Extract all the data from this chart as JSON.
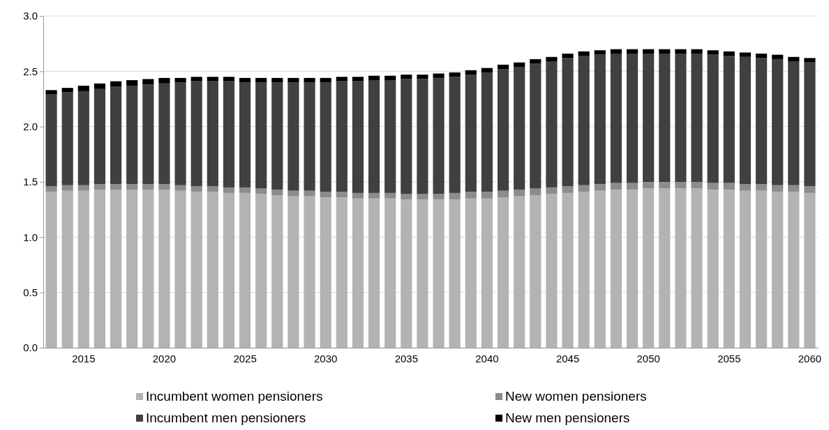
{
  "chart_data": {
    "type": "bar",
    "stacked": true,
    "categories": [
      null,
      null,
      "2015",
      null,
      null,
      null,
      null,
      "2020",
      null,
      null,
      null,
      null,
      "2025",
      null,
      null,
      null,
      null,
      "2030",
      null,
      null,
      null,
      null,
      "2035",
      null,
      null,
      null,
      null,
      "2040",
      null,
      null,
      null,
      null,
      "2045",
      null,
      null,
      null,
      null,
      "2050",
      null,
      null,
      null,
      null,
      "2055",
      null,
      null,
      null,
      null,
      "2060"
    ],
    "series": [
      {
        "name": "Incumbent women pensioners",
        "color": "#b3b3b3",
        "values": [
          1.41,
          1.42,
          1.42,
          1.43,
          1.43,
          1.43,
          1.43,
          1.43,
          1.42,
          1.41,
          1.41,
          1.4,
          1.4,
          1.39,
          1.38,
          1.37,
          1.37,
          1.36,
          1.36,
          1.35,
          1.35,
          1.35,
          1.34,
          1.34,
          1.34,
          1.34,
          1.35,
          1.35,
          1.36,
          1.37,
          1.38,
          1.39,
          1.4,
          1.41,
          1.42,
          1.43,
          1.43,
          1.44,
          1.44,
          1.44,
          1.44,
          1.43,
          1.43,
          1.42,
          1.42,
          1.41,
          1.41,
          1.4
        ]
      },
      {
        "name": "New women pensioners",
        "color": "#8c8c8c",
        "values": [
          0.05,
          0.05,
          0.05,
          0.05,
          0.05,
          0.05,
          0.05,
          0.05,
          0.05,
          0.05,
          0.05,
          0.05,
          0.05,
          0.05,
          0.05,
          0.05,
          0.05,
          0.05,
          0.05,
          0.05,
          0.05,
          0.05,
          0.05,
          0.05,
          0.05,
          0.06,
          0.06,
          0.06,
          0.06,
          0.06,
          0.06,
          0.06,
          0.06,
          0.06,
          0.06,
          0.06,
          0.06,
          0.06,
          0.06,
          0.06,
          0.06,
          0.06,
          0.06,
          0.06,
          0.06,
          0.06,
          0.06,
          0.06
        ]
      },
      {
        "name": "Incumbent men pensioners",
        "color": "#404040",
        "values": [
          0.83,
          0.84,
          0.85,
          0.86,
          0.88,
          0.89,
          0.9,
          0.91,
          0.93,
          0.95,
          0.95,
          0.96,
          0.95,
          0.96,
          0.97,
          0.98,
          0.98,
          0.99,
          1.0,
          1.01,
          1.02,
          1.02,
          1.04,
          1.04,
          1.05,
          1.05,
          1.06,
          1.08,
          1.1,
          1.11,
          1.13,
          1.14,
          1.16,
          1.17,
          1.17,
          1.17,
          1.17,
          1.16,
          1.16,
          1.16,
          1.16,
          1.16,
          1.15,
          1.15,
          1.14,
          1.14,
          1.12,
          1.12
        ]
      },
      {
        "name": "New men pensioners",
        "color": "#000000",
        "values": [
          0.04,
          0.04,
          0.05,
          0.05,
          0.05,
          0.05,
          0.05,
          0.05,
          0.04,
          0.04,
          0.04,
          0.04,
          0.04,
          0.04,
          0.04,
          0.04,
          0.04,
          0.04,
          0.04,
          0.04,
          0.04,
          0.04,
          0.04,
          0.04,
          0.04,
          0.04,
          0.04,
          0.04,
          0.04,
          0.04,
          0.04,
          0.04,
          0.04,
          0.04,
          0.04,
          0.04,
          0.04,
          0.04,
          0.04,
          0.04,
          0.04,
          0.04,
          0.04,
          0.04,
          0.04,
          0.04,
          0.04,
          0.04
        ]
      }
    ],
    "ylim": [
      0,
      3
    ],
    "yticks": [
      {
        "value": 0,
        "label": "0.0"
      },
      {
        "value": 0.5,
        "label": "0.5"
      },
      {
        "value": 1,
        "label": "1.0"
      },
      {
        "value": 1.5,
        "label": "1.5"
      },
      {
        "value": 2,
        "label": "2.0"
      },
      {
        "value": 2.5,
        "label": "2.5"
      },
      {
        "value": 3,
        "label": "3.0"
      }
    ],
    "grid": "y",
    "legend": "bottom"
  }
}
